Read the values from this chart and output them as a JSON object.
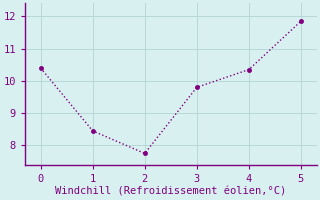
{
  "x": [
    0,
    1,
    2,
    3,
    4,
    5
  ],
  "y": [
    10.4,
    8.45,
    7.75,
    9.8,
    10.35,
    11.85
  ],
  "line_color": "#800080",
  "marker_color": "#800080",
  "bg_color": "#d8f0f0",
  "grid_color": "#b8d8d8",
  "xlabel": "Windchill (Refroidissement éolien,°C)",
  "xlabel_color": "#800080",
  "tick_color": "#800080",
  "spine_color": "#800080",
  "xlim": [
    -0.3,
    5.3
  ],
  "ylim": [
    7.4,
    12.4
  ],
  "yticks": [
    8,
    9,
    10,
    11,
    12
  ],
  "xticks": [
    0,
    1,
    2,
    3,
    4,
    5
  ],
  "marker_size": 3,
  "line_width": 1.0
}
